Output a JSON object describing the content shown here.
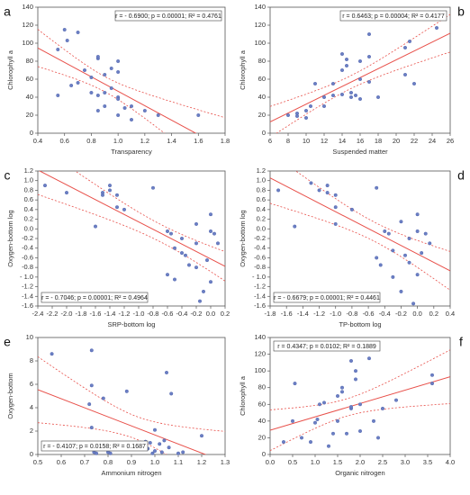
{
  "chart_data": [
    {
      "type": "scatter",
      "label": "a",
      "x_label": "Transparency",
      "y_label": "Chlorophyll a",
      "annotation": "r = - 0.6900; p = 0.00001; R² = 0.4761",
      "annotation_position": "top-right",
      "x": [
        0.55,
        0.6,
        0.62,
        0.7,
        0.55,
        0.65,
        0.7,
        0.75,
        0.8,
        0.85,
        0.85,
        0.8,
        0.85,
        0.9,
        0.9,
        0.95,
        0.95,
        1.0,
        1.0,
        1.0,
        1.0,
        1.05,
        1.0,
        1.1,
        1.1,
        1.2,
        1.3,
        1.6,
        0.9,
        0.85
      ],
      "values": [
        93,
        115,
        103,
        112,
        42,
        53,
        56,
        70,
        62,
        83,
        85,
        45,
        42,
        30,
        65,
        50,
        72,
        68,
        80,
        40,
        38,
        28,
        20,
        30,
        15,
        25,
        20,
        20,
        45,
        25
      ],
      "color": "#6b7fc4",
      "line_color": "#e8504a",
      "xlim": [
        0.4,
        1.8
      ],
      "xticks": [
        0.4,
        0.6,
        0.8,
        {
          "value": 1,
          "label": "1.0"
        },
        1.2,
        1.4,
        1.6,
        1.8
      ],
      "ylim": [
        0,
        140
      ],
      "yticks": [
        0,
        20,
        40,
        60,
        80,
        100,
        120,
        140
      ]
    },
    {
      "type": "scatter",
      "label": "b",
      "x_label": "Suspended matter",
      "y_label": "Chlorophyll a",
      "annotation": "r = 0.6463; p = 0.00004; R² = 0.4177",
      "annotation_position": "top-right",
      "x": [
        8,
        9,
        9,
        10,
        10,
        10.5,
        11,
        12,
        12,
        13,
        13,
        14,
        14,
        14.5,
        14.5,
        14,
        15,
        15,
        15.5,
        16,
        16,
        16,
        17,
        17,
        17,
        18,
        21,
        21,
        21.5,
        22,
        24.5
      ],
      "values": [
        20,
        22,
        19,
        17,
        25,
        30,
        55,
        30,
        40,
        42,
        55,
        70,
        88,
        75,
        82,
        43,
        45,
        40,
        42,
        38,
        60,
        80,
        110,
        85,
        57,
        40,
        65,
        95,
        102,
        55,
        117
      ],
      "color": "#6b7fc4",
      "line_color": "#e8504a",
      "xlim": [
        6,
        26
      ],
      "xticks": [
        6,
        8,
        10,
        12,
        14,
        16,
        18,
        20,
        22,
        24,
        26
      ],
      "ylim": [
        0,
        140
      ],
      "yticks": [
        0,
        20,
        40,
        60,
        80,
        100,
        120,
        140
      ]
    },
    {
      "type": "scatter",
      "label": "c",
      "x_label": "SRP-bottom log",
      "y_label": "Oxygen-bottom log",
      "annotation": "r = - 0.7046; p = 0.00001; R² = 0.4964",
      "annotation_position": "bottom-left",
      "x": [
        -2.3,
        -2.0,
        -1.6,
        -1.5,
        -1.5,
        -1.4,
        -1.4,
        -1.3,
        -1.2,
        -1.3,
        -0.8,
        -0.6,
        -0.55,
        -0.6,
        -0.5,
        -0.5,
        -0.4,
        -0.4,
        -0.35,
        -0.3,
        -0.2,
        -0.2,
        -0.2,
        -0.1,
        -0.15,
        0,
        0,
        0.05,
        0.1,
        0,
        -0.05
      ],
      "values": [
        0.9,
        0.75,
        0.05,
        0.7,
        0.75,
        0.8,
        0.9,
        0.7,
        0.4,
        0.45,
        0.85,
        -0.05,
        -0.1,
        -0.95,
        -1.05,
        -0.4,
        -0.2,
        -0.5,
        -0.55,
        -0.75,
        -0.3,
        0.1,
        -0.8,
        -1.3,
        -1.5,
        0.3,
        -0.05,
        -0.1,
        -0.3,
        -1.1,
        -0.65
      ],
      "color": "#6b7fc4",
      "line_color": "#e8504a",
      "xlim": [
        -2.4,
        0.2
      ],
      "xticks": [
        -2.4,
        -2.2,
        {
          "value": -2,
          "label": "-2.0"
        },
        -1.8,
        -1.6,
        -1.4,
        -1.2,
        {
          "value": -1,
          "label": "-1.0"
        },
        -0.8,
        -0.6,
        -0.4,
        -0.2,
        {
          "value": 0,
          "label": "0.0"
        },
        0.2
      ],
      "ylim": [
        -1.6,
        1.2
      ],
      "yticks": [
        {
          "value": 1.2,
          "label": "1.2"
        },
        {
          "value": 1,
          "label": "1.0"
        },
        0.8,
        0.6,
        0.4,
        0.2,
        {
          "value": 0,
          "label": "0.0"
        },
        -0.2,
        -0.4,
        -0.6,
        -0.8,
        {
          "value": -1,
          "label": "- 1.0"
        },
        -1.2,
        -1.4,
        -1.6
      ]
    },
    {
      "type": "scatter",
      "label": "d",
      "x_label": "TP-bottom log",
      "y_label": "Oxygen-bottom log",
      "annotation": "r = - 0.6679; p = 0.00001; R² = 0.4461",
      "annotation_position": "bottom-left",
      "x": [
        -1.7,
        -1.5,
        -1.3,
        -1.2,
        -1.1,
        -1.1,
        -1.0,
        -1.0,
        -1.0,
        -0.8,
        -0.5,
        -0.5,
        -0.45,
        -0.4,
        -0.35,
        -0.3,
        -0.3,
        -0.2,
        -0.15,
        -0.1,
        -0.1,
        -0.2,
        0,
        0,
        0.05,
        0,
        -0.05,
        0.1,
        0.15
      ],
      "values": [
        0.8,
        0.05,
        0.95,
        0.8,
        0.75,
        0.9,
        0.7,
        0.45,
        0.1,
        0.4,
        0.85,
        -0.6,
        -0.75,
        -0.05,
        -0.1,
        -0.45,
        -1.0,
        -1.3,
        -0.55,
        -0.7,
        -0.2,
        0.15,
        -0.05,
        0.3,
        -0.5,
        -0.95,
        -1.55,
        -0.1,
        -0.3
      ],
      "color": "#6b7fc4",
      "line_color": "#e8504a",
      "xlim": [
        -1.8,
        0.4
      ],
      "xticks": [
        -1.8,
        -1.6,
        -1.4,
        -1.2,
        {
          "value": -1,
          "label": "-1.0"
        },
        -0.8,
        -0.6,
        -0.4,
        -0.2,
        {
          "value": 0,
          "label": "0.0"
        },
        0.2,
        0.4
      ],
      "ylim": [
        -1.6,
        1.2
      ],
      "yticks": [
        {
          "value": 1.2,
          "label": "1.2"
        },
        {
          "value": 1,
          "label": "1.0"
        },
        0.8,
        0.6,
        0.4,
        0.2,
        {
          "value": 0,
          "label": "0.0"
        },
        -0.2,
        -0.4,
        -0.6,
        -0.8,
        {
          "value": -1,
          "label": "- 1.0"
        },
        -1.2,
        -1.4,
        -1.6
      ]
    },
    {
      "type": "scatter",
      "label": "e",
      "x_label": "Ammonium nitrogen",
      "y_label": "Oxygen-bottom",
      "annotation": "r = - 0.4107; p = 0.0158; R² = 0.1687",
      "annotation_position": "bottom-left",
      "x": [
        0.56,
        0.72,
        0.73,
        0.73,
        0.73,
        0.74,
        0.75,
        0.78,
        0.8,
        0.81,
        0.88,
        0.9,
        0.95,
        0.96,
        0.97,
        0.98,
        1.0,
        1.0,
        1.02,
        1.03,
        1.04,
        1.05,
        1.06,
        1.07,
        1.1,
        1.12,
        1.2,
        0.99
      ],
      "values": [
        8.6,
        4.3,
        8.9,
        5.9,
        2.3,
        0.2,
        0.1,
        4.8,
        0.2,
        0.1,
        5.4,
        1.0,
        0.9,
        1.1,
        0.5,
        1.0,
        0.3,
        2.1,
        0.9,
        0.2,
        1.2,
        7.0,
        0.6,
        5.2,
        0.1,
        0.2,
        1.6,
        0.1
      ],
      "color": "#6b7fc4",
      "line_color": "#e8504a",
      "xlim": [
        0.5,
        1.3
      ],
      "xticks": [
        0.5,
        0.6,
        0.7,
        0.8,
        0.9,
        {
          "value": 1,
          "label": "1.0"
        },
        1.1,
        1.2,
        1.3
      ],
      "ylim": [
        0,
        10
      ],
      "yticks": [
        0,
        2,
        4,
        6,
        8,
        10
      ]
    },
    {
      "type": "scatter",
      "label": "f",
      "x_label": "Organic nitrogen",
      "y_label": "Chlorophyll a",
      "annotation": "r = 0.4347; p = 0.0102; R² = 0.1889",
      "annotation_position": "top-left",
      "x": [
        0.3,
        0.5,
        0.55,
        0.7,
        0.9,
        1.0,
        1.05,
        1.1,
        1.2,
        1.3,
        1.4,
        1.5,
        1.5,
        1.6,
        1.6,
        1.7,
        1.8,
        1.8,
        1.8,
        1.9,
        1.9,
        2.0,
        2.0,
        2.2,
        2.3,
        2.4,
        2.5,
        2.8,
        3.6,
        3.6
      ],
      "values": [
        15,
        40,
        85,
        20,
        15,
        38,
        42,
        60,
        62,
        10,
        25,
        70,
        40,
        80,
        75,
        25,
        55,
        57,
        112,
        100,
        90,
        60,
        28,
        115,
        40,
        20,
        55,
        65,
        95,
        85
      ],
      "color": "#6b7fc4",
      "line_color": "#e8504a",
      "xlim": [
        0,
        4
      ],
      "xticks": [
        {
          "value": 0,
          "label": "0.0"
        },
        0.5,
        {
          "value": 1,
          "label": "1.0"
        },
        1.5,
        {
          "value": 2,
          "label": "2.0"
        },
        2.5,
        {
          "value": 3,
          "label": "3.0"
        },
        3.5,
        {
          "value": 4,
          "label": "4.0"
        }
      ],
      "ylim": [
        0,
        140
      ],
      "yticks": [
        0,
        20,
        40,
        60,
        80,
        100,
        120,
        140
      ]
    }
  ]
}
